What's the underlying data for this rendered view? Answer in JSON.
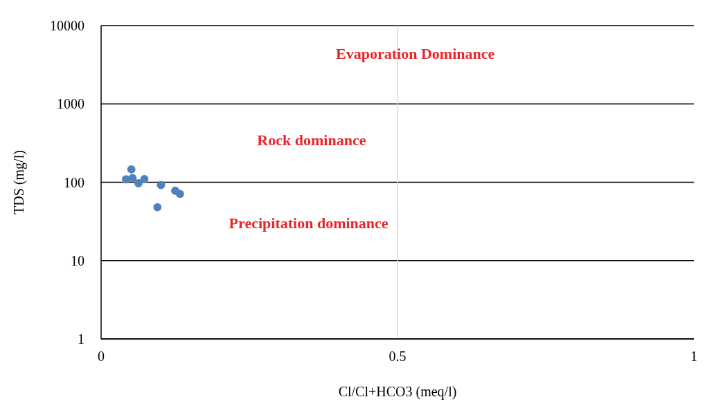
{
  "chart_data": {
    "type": "scatter",
    "xlabel": "Cl/Cl+HCO3 (meq/l)",
    "ylabel": "TDS (mg/l)",
    "x": [
      0.042,
      0.051,
      0.053,
      0.063,
      0.073,
      0.101,
      0.095,
      0.125,
      0.133
    ],
    "series": [
      {
        "color": "#4f81bd",
        "values": [
          109,
          146,
          113,
          97,
          110,
          92,
          48,
          78,
          71
        ]
      }
    ],
    "xlim": [
      0,
      1
    ],
    "xticks": [
      0,
      0.5,
      1
    ],
    "ylim": [
      1,
      10000
    ],
    "yticks": [
      1,
      10,
      100,
      1000,
      10000
    ],
    "log": "y",
    "grid": "y",
    "marker": "circle",
    "ref_lines": [
      {
        "axis": "x",
        "value": 0.5,
        "color": "#d9d9d9"
      }
    ],
    "annotations": [
      "Evaporation Dominance",
      "Rock dominance",
      "Precipitation dominance"
    ]
  }
}
